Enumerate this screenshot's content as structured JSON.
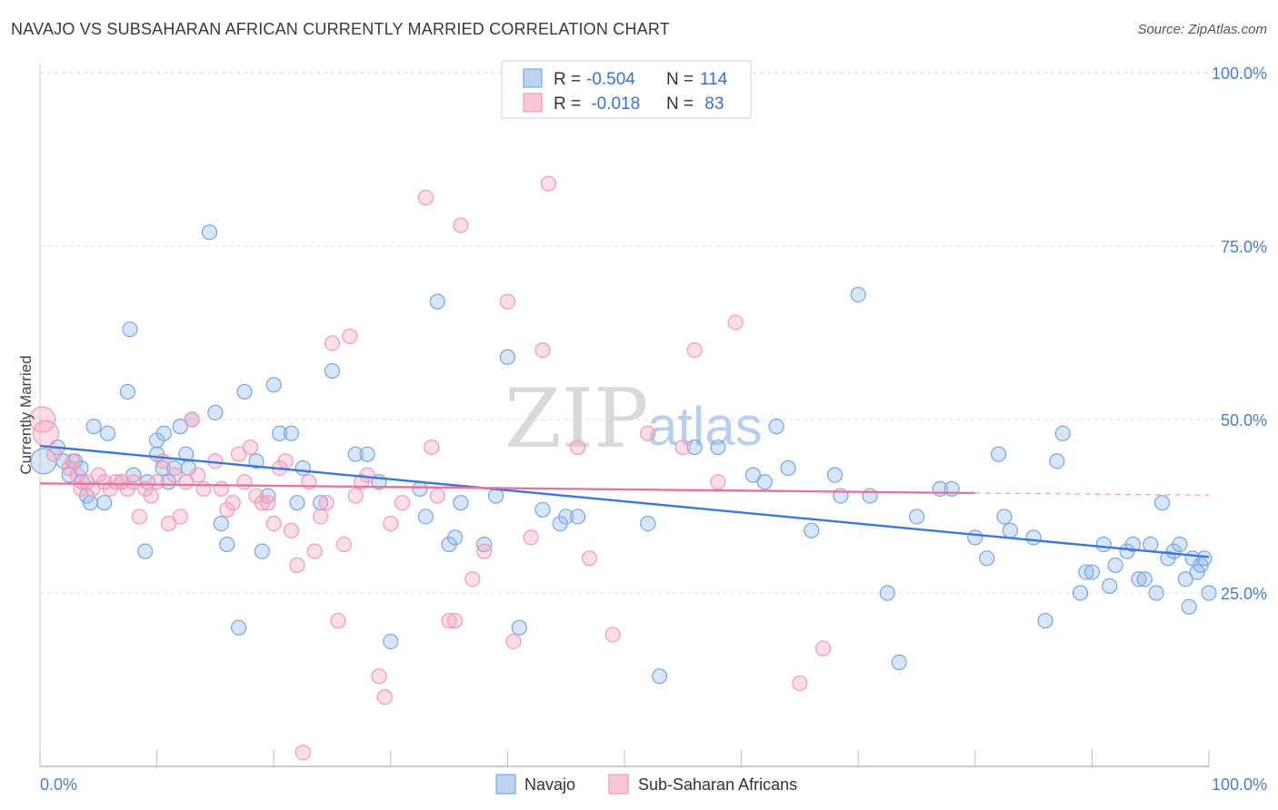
{
  "header": {
    "title": "NAVAJO VS SUBSAHARAN AFRICAN CURRENTLY MARRIED CORRELATION CHART",
    "source": "Source: ZipAtlas.com"
  },
  "watermark": {
    "zip": "ZIP",
    "atlas": "atlas"
  },
  "legend": {
    "rows": [
      {
        "r_label": "R = ",
        "r_value": "-0.504",
        "n_label": "N = ",
        "n_value": "114",
        "color": "#7aa6e0"
      },
      {
        "r_label": "R = ",
        "r_value": " -0.018",
        "n_label": "N = ",
        "n_value": " 83",
        "color": "#f19ab6"
      }
    ]
  },
  "bottom_legend": {
    "items": [
      {
        "label": "Navajo",
        "color": "#7aa6e0"
      },
      {
        "label": "Sub-Saharan Africans",
        "color": "#f19ab6"
      }
    ]
  },
  "chart_data": {
    "type": "scatter",
    "title": "NAVAJO VS SUBSAHARAN AFRICAN CURRENTLY MARRIED CORRELATION CHART",
    "ylabel": "Currently Married",
    "xlabel": "",
    "xlim": [
      0,
      100
    ],
    "ylim": [
      0,
      100
    ],
    "x_tick_labels": [
      "0.0%",
      "100.0%"
    ],
    "y_ticks": [
      {
        "value": 25,
        "label": "25.0%"
      },
      {
        "value": 50,
        "label": "50.0%"
      },
      {
        "value": 75,
        "label": "75.0%"
      },
      {
        "value": 100,
        "label": "100.0%"
      }
    ],
    "grid": "horizontal dashed",
    "series": [
      {
        "name": "Navajo",
        "color": "#7aa6e0",
        "trend": {
          "x0": 0,
          "y0": 46.2,
          "x1": 100,
          "y1": 30.2
        },
        "points": [
          [
            0.3,
            44
          ],
          [
            1.5,
            46
          ],
          [
            2,
            44
          ],
          [
            2.5,
            42
          ],
          [
            3,
            44
          ],
          [
            3.5,
            43
          ],
          [
            3.6,
            41
          ],
          [
            4,
            39
          ],
          [
            4.3,
            38
          ],
          [
            4.6,
            49
          ],
          [
            5.5,
            38
          ],
          [
            5.8,
            48
          ],
          [
            7,
            41
          ],
          [
            7.5,
            54
          ],
          [
            7.7,
            63
          ],
          [
            8,
            42
          ],
          [
            9,
            31
          ],
          [
            9.2,
            41
          ],
          [
            10,
            45
          ],
          [
            10,
            47
          ],
          [
            10.5,
            43
          ],
          [
            10.6,
            48
          ],
          [
            11,
            41
          ],
          [
            11.5,
            43
          ],
          [
            12,
            49
          ],
          [
            12.5,
            45
          ],
          [
            12.7,
            43
          ],
          [
            13,
            50
          ],
          [
            14.5,
            77
          ],
          [
            15,
            51
          ],
          [
            15.5,
            35
          ],
          [
            16,
            32
          ],
          [
            17,
            20
          ],
          [
            17.5,
            54
          ],
          [
            18.5,
            44
          ],
          [
            19,
            31
          ],
          [
            19.5,
            39
          ],
          [
            20,
            55
          ],
          [
            20.5,
            48
          ],
          [
            21.5,
            48
          ],
          [
            22,
            38
          ],
          [
            22.5,
            43
          ],
          [
            24,
            38
          ],
          [
            25,
            57
          ],
          [
            27,
            45
          ],
          [
            28,
            45
          ],
          [
            29,
            41
          ],
          [
            30,
            18
          ],
          [
            32.5,
            40
          ],
          [
            33,
            36
          ],
          [
            34,
            67
          ],
          [
            35,
            32
          ],
          [
            35.5,
            33
          ],
          [
            36,
            38
          ],
          [
            38,
            32
          ],
          [
            39,
            39
          ],
          [
            40,
            59
          ],
          [
            41,
            20
          ],
          [
            43,
            37
          ],
          [
            44.5,
            35
          ],
          [
            45,
            36
          ],
          [
            46,
            36
          ],
          [
            52,
            35
          ],
          [
            53,
            13
          ],
          [
            56,
            46
          ],
          [
            58,
            46
          ],
          [
            61,
            42
          ],
          [
            62,
            41
          ],
          [
            63,
            49
          ],
          [
            64,
            43
          ],
          [
            66,
            34
          ],
          [
            68,
            42
          ],
          [
            68.5,
            39
          ],
          [
            70,
            68
          ],
          [
            71,
            39
          ],
          [
            72.5,
            25
          ],
          [
            73.5,
            15
          ],
          [
            75,
            36
          ],
          [
            77,
            40
          ],
          [
            78,
            40
          ],
          [
            80,
            33
          ],
          [
            81,
            30
          ],
          [
            82,
            45
          ],
          [
            82.5,
            36
          ],
          [
            83,
            34
          ],
          [
            85,
            33
          ],
          [
            86,
            21
          ],
          [
            87,
            44
          ],
          [
            87.5,
            48
          ],
          [
            89,
            25
          ],
          [
            89.5,
            28
          ],
          [
            90,
            28
          ],
          [
            91,
            32
          ],
          [
            91.5,
            26
          ],
          [
            92,
            29
          ],
          [
            93,
            31
          ],
          [
            93.5,
            32
          ],
          [
            94,
            27
          ],
          [
            94.5,
            27
          ],
          [
            95,
            32
          ],
          [
            95.5,
            25
          ],
          [
            96,
            38
          ],
          [
            96.5,
            30
          ],
          [
            97,
            31
          ],
          [
            97.5,
            32
          ],
          [
            98,
            27
          ],
          [
            98.3,
            23
          ],
          [
            98.6,
            30
          ],
          [
            99,
            28
          ],
          [
            99.3,
            29
          ],
          [
            99.6,
            30
          ],
          [
            100,
            25
          ]
        ]
      },
      {
        "name": "Sub-Saharan Africans",
        "color": "#f19ab6",
        "trend": {
          "x0": 0,
          "y0": 40.8,
          "x1": 80,
          "y1": 39.4,
          "dash_x1": 100,
          "dash_y1": 39.1
        },
        "points": [
          [
            0.2,
            50
          ],
          [
            0.5,
            48
          ],
          [
            1.2,
            45
          ],
          [
            2.5,
            43
          ],
          [
            2.8,
            44
          ],
          [
            3.2,
            42
          ],
          [
            3.5,
            40
          ],
          [
            4,
            41
          ],
          [
            4.5,
            40
          ],
          [
            5,
            42
          ],
          [
            5.5,
            41
          ],
          [
            6,
            40
          ],
          [
            6.5,
            41
          ],
          [
            7,
            41
          ],
          [
            7.5,
            40
          ],
          [
            8,
            41
          ],
          [
            8.5,
            36
          ],
          [
            9,
            40
          ],
          [
            9.5,
            39
          ],
          [
            10,
            41
          ],
          [
            10.5,
            44
          ],
          [
            11,
            35
          ],
          [
            11.5,
            42
          ],
          [
            12,
            36
          ],
          [
            12.5,
            41
          ],
          [
            13,
            50
          ],
          [
            13.5,
            42
          ],
          [
            14,
            40
          ],
          [
            15,
            44
          ],
          [
            15.5,
            40
          ],
          [
            16,
            37
          ],
          [
            16.5,
            38
          ],
          [
            17,
            45
          ],
          [
            17.5,
            41
          ],
          [
            18,
            46
          ],
          [
            18.5,
            39
          ],
          [
            19,
            38
          ],
          [
            19.5,
            38
          ],
          [
            20,
            35
          ],
          [
            20.5,
            43
          ],
          [
            21,
            44
          ],
          [
            21.5,
            34
          ],
          [
            22,
            29
          ],
          [
            22.5,
            2
          ],
          [
            23,
            41
          ],
          [
            23.5,
            31
          ],
          [
            24,
            36
          ],
          [
            24.5,
            38
          ],
          [
            25,
            61
          ],
          [
            25.5,
            21
          ],
          [
            26,
            32
          ],
          [
            26.5,
            62
          ],
          [
            27,
            39
          ],
          [
            27.5,
            41
          ],
          [
            28,
            42
          ],
          [
            29,
            13
          ],
          [
            29.5,
            10
          ],
          [
            30,
            35
          ],
          [
            31,
            38
          ],
          [
            33,
            82
          ],
          [
            33.5,
            46
          ],
          [
            34,
            39
          ],
          [
            35,
            21
          ],
          [
            35.5,
            21
          ],
          [
            36,
            78
          ],
          [
            37,
            27
          ],
          [
            38,
            31
          ],
          [
            40,
            67
          ],
          [
            40.5,
            18
          ],
          [
            42,
            33
          ],
          [
            43,
            60
          ],
          [
            43.5,
            84
          ],
          [
            46,
            46
          ],
          [
            47,
            30
          ],
          [
            49,
            19
          ],
          [
            52,
            48
          ],
          [
            55,
            46
          ],
          [
            56,
            60
          ],
          [
            58,
            41
          ],
          [
            59.5,
            64
          ],
          [
            65,
            12
          ],
          [
            67,
            17
          ]
        ]
      }
    ]
  }
}
